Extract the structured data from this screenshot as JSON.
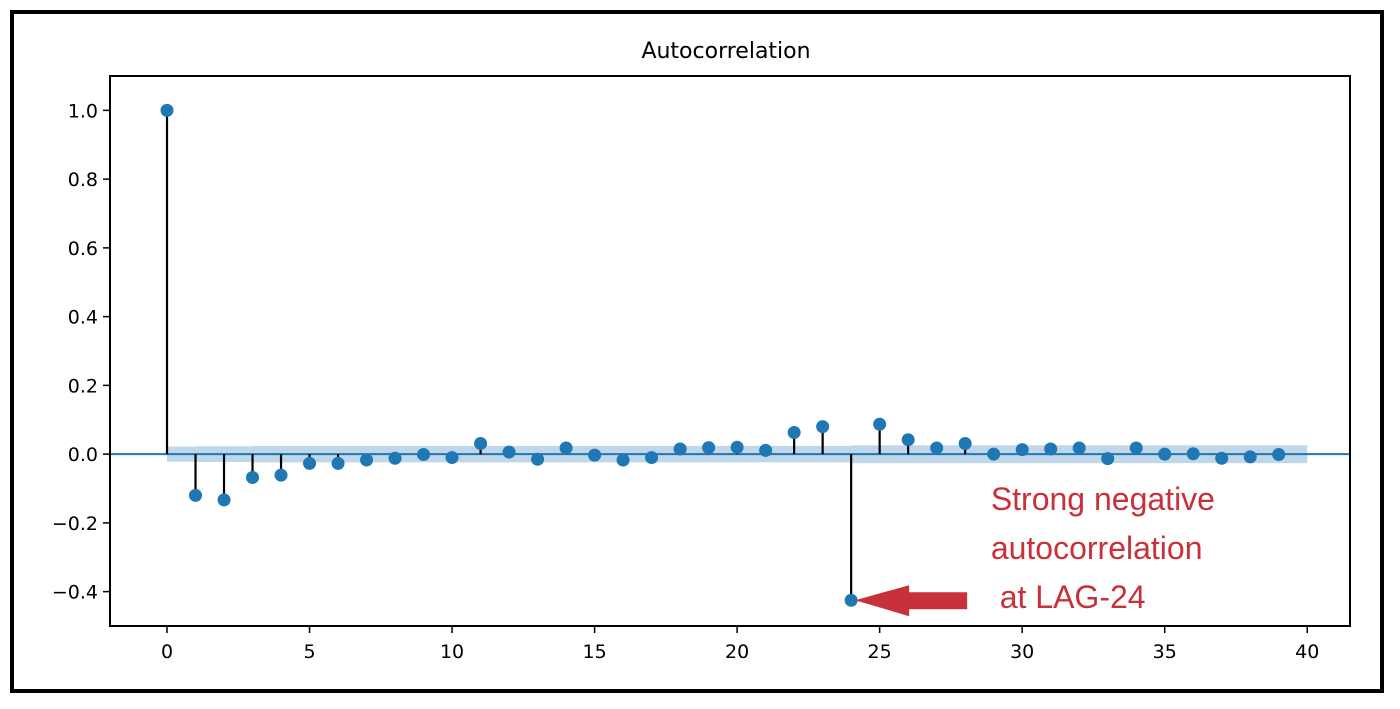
{
  "chart_data": {
    "type": "stem",
    "title": "Autocorrelation",
    "xlabel": "",
    "ylabel": "",
    "xlim": [
      -2,
      41.5
    ],
    "ylim": [
      -0.5,
      1.1
    ],
    "xticks": [
      0,
      5,
      10,
      15,
      20,
      25,
      30,
      35,
      40
    ],
    "xtick_labels": [
      "0",
      "5",
      "10",
      "15",
      "20",
      "25",
      "30",
      "35",
      "40"
    ],
    "yticks": [
      -0.4,
      -0.2,
      0.0,
      0.2,
      0.4,
      0.6,
      0.8,
      1.0
    ],
    "ytick_labels": [
      "−0.4",
      "−0.2",
      "0.0",
      "0.2",
      "0.4",
      "0.6",
      "0.8",
      "1.0"
    ],
    "grid": false,
    "lags": [
      0,
      1,
      2,
      3,
      4,
      5,
      6,
      7,
      8,
      9,
      10,
      11,
      12,
      13,
      14,
      15,
      16,
      17,
      18,
      19,
      20,
      21,
      22,
      23,
      24,
      25,
      26,
      27,
      28,
      29,
      30,
      31,
      32,
      33,
      34,
      35,
      36,
      37,
      38,
      39
    ],
    "acf": [
      1.0,
      -0.12,
      -0.133,
      -0.068,
      -0.061,
      -0.027,
      -0.027,
      -0.017,
      -0.012,
      -0.001,
      -0.01,
      0.031,
      0.006,
      -0.015,
      0.018,
      -0.003,
      -0.017,
      -0.01,
      0.015,
      0.019,
      0.02,
      0.011,
      0.063,
      0.08,
      -0.425,
      0.087,
      0.042,
      0.018,
      0.031,
      0.0,
      0.013,
      0.015,
      0.018,
      -0.013,
      0.018,
      0.0,
      0.001,
      -0.012,
      -0.008,
      -0.001
    ],
    "confidence_band": {
      "lags": [
        0.5,
        1.5,
        2.5,
        3.5,
        4.5,
        5.5,
        6.5,
        7.5,
        8.5,
        9.5,
        10.5,
        11.5,
        12.5,
        13.5,
        14.5,
        15.5,
        16.5,
        17.5,
        18.5,
        19.5,
        20.5,
        21.5,
        22.5,
        23.5,
        24.5,
        25.5,
        26.5,
        27.5,
        28.5,
        29.5,
        30.5,
        31.5,
        32.5,
        33.5,
        34.5,
        35.5,
        36.5,
        37.5,
        38.5,
        39.5
      ],
      "half_width": [
        0.022,
        0.023,
        0.023,
        0.024,
        0.024,
        0.024,
        0.024,
        0.024,
        0.024,
        0.024,
        0.024,
        0.024,
        0.024,
        0.024,
        0.024,
        0.024,
        0.024,
        0.024,
        0.024,
        0.024,
        0.024,
        0.024,
        0.024,
        0.024,
        0.026,
        0.026,
        0.026,
        0.026,
        0.026,
        0.026,
        0.026,
        0.026,
        0.026,
        0.026,
        0.026,
        0.026,
        0.026,
        0.026,
        0.026,
        0.026
      ]
    },
    "colors": {
      "marker": "#1f77b4",
      "stem": "#000000",
      "band": "#b9d3e8",
      "baseline": "#1f77b4"
    },
    "annotation": {
      "lines": [
        "Strong negative",
        "autocorrelation",
        " at LAG-24"
      ],
      "color": "#c8303a",
      "target_lag": 24,
      "target_value": -0.425
    }
  }
}
